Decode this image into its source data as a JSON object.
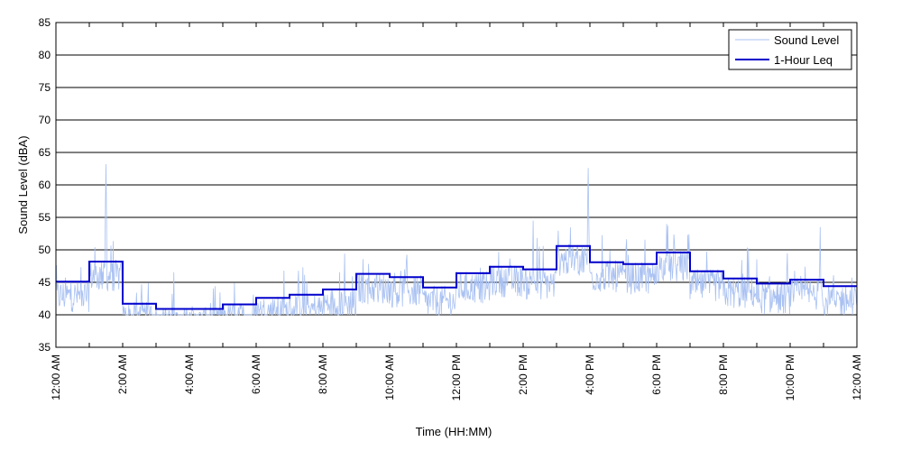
{
  "chart_data": {
    "type": "line",
    "xlabel": "Time (HH:MM)",
    "ylabel": "Sound Level (dBA)",
    "ylim": [
      35,
      85
    ],
    "yticks": [
      35,
      40,
      45,
      50,
      55,
      60,
      65,
      70,
      75,
      80,
      85
    ],
    "xlim": [
      0,
      24
    ],
    "xtick_labels": [
      "12:00 AM",
      "2:00 AM",
      "4:00 AM",
      "6:00 AM",
      "8:00 AM",
      "10:00 AM",
      "12:00 PM",
      "2:00 PM",
      "4:00 PM",
      "6:00 PM",
      "8:00 PM",
      "10:00 PM",
      "12:00 AM"
    ],
    "grid": "horizontal",
    "legend_position": "top-right",
    "series": [
      {
        "name": "Sound Level",
        "color": "#a9c1f2",
        "style": "thin noisy line sampled about once per minute",
        "peaks": [
          {
            "hour": 1.5,
            "value": 63.2
          },
          {
            "hour": 15.95,
            "value": 62.6
          },
          {
            "hour": 22.9,
            "value": 53.5
          },
          {
            "hour": 18.3,
            "value": 54.0
          },
          {
            "hour": 14.3,
            "value": 54.5
          }
        ]
      },
      {
        "name": "1-Hour Leq",
        "color": "#0000cc",
        "style": "step",
        "hours": [
          0,
          1,
          2,
          3,
          4,
          5,
          6,
          7,
          8,
          9,
          10,
          11,
          12,
          13,
          14,
          15,
          16,
          17,
          18,
          19,
          20,
          21,
          22,
          23
        ],
        "values": [
          45.1,
          48.2,
          41.7,
          40.9,
          40.9,
          41.6,
          42.6,
          43.1,
          43.9,
          46.3,
          45.8,
          44.2,
          46.4,
          47.4,
          47.0,
          50.6,
          48.1,
          47.8,
          49.6,
          46.7,
          45.6,
          44.8,
          45.4,
          44.4
        ]
      }
    ]
  }
}
